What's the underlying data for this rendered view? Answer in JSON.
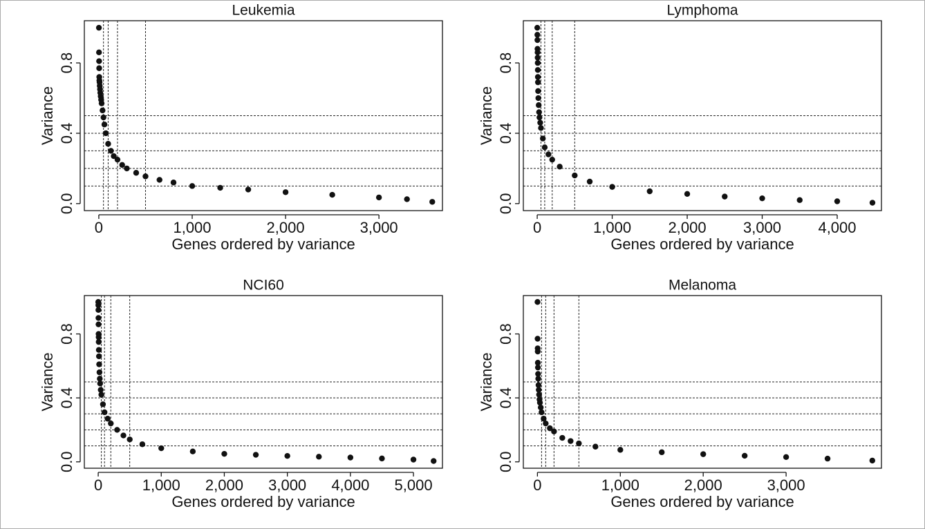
{
  "chart_data": [
    {
      "type": "scatter",
      "title": "Leukemia",
      "x_label": "Genes ordered by variance",
      "y_label": "Variance",
      "color": "#111111",
      "x": [
        1,
        2,
        3,
        4,
        5,
        6,
        8,
        10,
        13,
        16,
        20,
        25,
        30,
        40,
        50,
        60,
        75,
        100,
        130,
        160,
        200,
        250,
        300,
        400,
        500,
        650,
        800,
        1000,
        1300,
        1600,
        2000,
        2500,
        3000,
        3300,
        3571
      ],
      "values": [
        1.0,
        0.86,
        0.81,
        0.77,
        0.72,
        0.7,
        0.69,
        0.67,
        0.65,
        0.63,
        0.61,
        0.59,
        0.57,
        0.53,
        0.49,
        0.45,
        0.4,
        0.34,
        0.3,
        0.27,
        0.25,
        0.22,
        0.2,
        0.175,
        0.155,
        0.135,
        0.12,
        0.1,
        0.09,
        0.08,
        0.065,
        0.05,
        0.035,
        0.025,
        0.01
      ],
      "xlim": [
        -155,
        3680
      ],
      "ylim": [
        -0.04,
        1.04
      ],
      "xticks": [
        0,
        {
          "value": 1000,
          "label": "1,000"
        },
        {
          "value": 2000,
          "label": "2,000"
        },
        {
          "value": 3000,
          "label": "3,000"
        }
      ],
      "yticks": [
        {
          "value": 0,
          "label": "0.0"
        },
        0.4,
        0.8
      ],
      "vlines": [
        50,
        100,
        200,
        500
      ],
      "hlines": [
        0.1,
        0.2,
        0.3,
        0.4,
        0.5
      ]
    },
    {
      "type": "scatter",
      "title": "Lymphoma",
      "x_label": "Genes ordered by variance",
      "y_label": "Variance",
      "color": "#111111",
      "x": [
        1,
        2,
        3,
        4,
        5,
        6,
        7,
        8,
        9,
        10,
        12,
        15,
        20,
        25,
        30,
        40,
        50,
        75,
        100,
        150,
        200,
        300,
        500,
        700,
        1000,
        1500,
        2000,
        2500,
        3000,
        3500,
        4000,
        4470
      ],
      "values": [
        1.0,
        0.96,
        0.93,
        0.88,
        0.86,
        0.83,
        0.8,
        0.76,
        0.72,
        0.69,
        0.64,
        0.6,
        0.56,
        0.52,
        0.49,
        0.46,
        0.43,
        0.37,
        0.32,
        0.28,
        0.25,
        0.21,
        0.16,
        0.125,
        0.095,
        0.07,
        0.055,
        0.04,
        0.03,
        0.02,
        0.013,
        0.005
      ],
      "xlim": [
        -185,
        4590
      ],
      "ylim": [
        -0.04,
        1.04
      ],
      "xticks": [
        0,
        {
          "value": 1000,
          "label": "1,000"
        },
        {
          "value": 2000,
          "label": "2,000"
        },
        {
          "value": 3000,
          "label": "3,000"
        },
        {
          "value": 4000,
          "label": "4,000"
        }
      ],
      "yticks": [
        {
          "value": 0,
          "label": "0.0"
        },
        0.4,
        0.8
      ],
      "vlines": [
        50,
        100,
        200,
        500
      ],
      "hlines": [
        0.1,
        0.2,
        0.3,
        0.4,
        0.5
      ]
    },
    {
      "type": "scatter",
      "title": "NCI60",
      "x_label": "Genes ordered by variance",
      "y_label": "Variance",
      "color": "#111111",
      "x": [
        1,
        2,
        3,
        4,
        5,
        6,
        7,
        8,
        10,
        12,
        15,
        20,
        25,
        30,
        40,
        50,
        75,
        100,
        150,
        200,
        300,
        400,
        500,
        700,
        1000,
        1500,
        2000,
        2500,
        3000,
        3500,
        4000,
        4500,
        5000,
        5320
      ],
      "values": [
        1.0,
        0.98,
        0.95,
        0.9,
        0.86,
        0.8,
        0.78,
        0.75,
        0.7,
        0.66,
        0.61,
        0.56,
        0.52,
        0.49,
        0.45,
        0.42,
        0.36,
        0.31,
        0.27,
        0.24,
        0.2,
        0.165,
        0.14,
        0.11,
        0.085,
        0.065,
        0.05,
        0.044,
        0.037,
        0.032,
        0.027,
        0.021,
        0.014,
        0.005
      ],
      "xlim": [
        -220,
        5460
      ],
      "ylim": [
        -0.04,
        1.04
      ],
      "xticks": [
        0,
        {
          "value": 1000,
          "label": "1,000"
        },
        {
          "value": 2000,
          "label": "2,000"
        },
        {
          "value": 3000,
          "label": "3,000"
        },
        {
          "value": 4000,
          "label": "4,000"
        },
        {
          "value": 5000,
          "label": "5,000"
        }
      ],
      "yticks": [
        {
          "value": 0,
          "label": "0.0"
        },
        0.4,
        0.8
      ],
      "vlines": [
        50,
        100,
        200,
        500
      ],
      "hlines": [
        0.1,
        0.2,
        0.3,
        0.4,
        0.5
      ]
    },
    {
      "type": "scatter",
      "title": "Melanoma",
      "x_label": "Genes ordered by variance",
      "y_label": "Variance",
      "color": "#111111",
      "x": [
        1,
        2,
        3,
        4,
        5,
        6,
        8,
        10,
        13,
        16,
        20,
        25,
        30,
        40,
        50,
        75,
        100,
        150,
        200,
        300,
        400,
        500,
        700,
        1000,
        1500,
        2000,
        2500,
        3000,
        3500,
        4040
      ],
      "values": [
        1.0,
        0.77,
        0.71,
        0.69,
        0.62,
        0.59,
        0.55,
        0.52,
        0.48,
        0.45,
        0.42,
        0.39,
        0.37,
        0.34,
        0.31,
        0.27,
        0.24,
        0.21,
        0.19,
        0.15,
        0.13,
        0.115,
        0.095,
        0.075,
        0.06,
        0.048,
        0.038,
        0.03,
        0.02,
        0.008
      ],
      "xlim": [
        -170,
        4150
      ],
      "ylim": [
        -0.04,
        1.04
      ],
      "xticks": [
        0,
        {
          "value": 1000,
          "label": "1,000"
        },
        {
          "value": 2000,
          "label": "2,000"
        },
        {
          "value": 3000,
          "label": "3,000"
        }
      ],
      "yticks": [
        {
          "value": 0,
          "label": "0.0"
        },
        0.4,
        0.8
      ],
      "vlines": [
        50,
        100,
        200,
        500
      ],
      "hlines": [
        0.1,
        0.2,
        0.3,
        0.4,
        0.5
      ]
    }
  ]
}
